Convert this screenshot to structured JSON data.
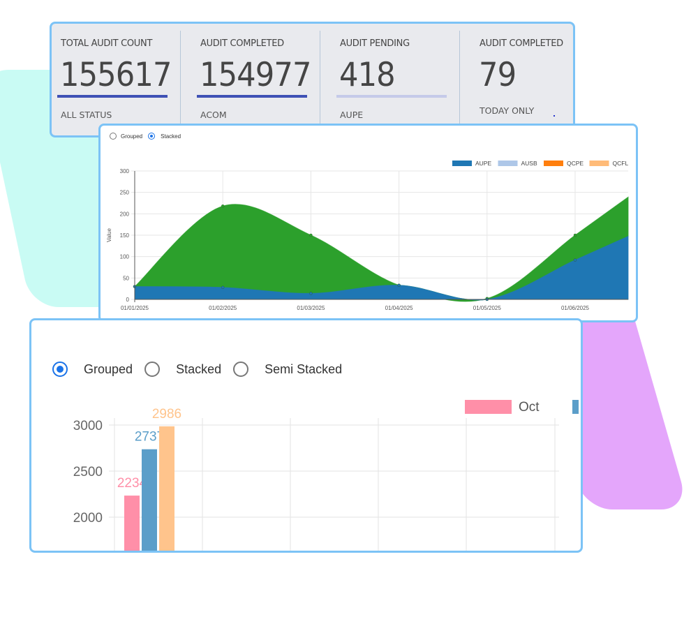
{
  "kpis": [
    {
      "title": "TOTAL AUDIT COUNT",
      "value": "155617",
      "subtitle": "ALL STATUS",
      "bar_color": "#3f51b5"
    },
    {
      "title": "AUDIT COMPLETED",
      "value": "154977",
      "subtitle": "ACOM",
      "bar_color": "#3f51b5"
    },
    {
      "title": "AUDIT PENDING",
      "value": "418",
      "subtitle": "AUPE",
      "bar_color": "#c5cae9"
    },
    {
      "title": "AUDIT COMPLETED",
      "value": "79",
      "subtitle": "TODAY ONLY",
      "bar_color": ""
    }
  ],
  "area_chart": {
    "mode_options": [
      {
        "label": "Grouped",
        "selected": false
      },
      {
        "label": "Stacked",
        "selected": true
      }
    ],
    "chart_data": {
      "type": "area",
      "stacked": true,
      "ylabel": "Value",
      "ylim": [
        0,
        300
      ],
      "yticks": [
        0,
        50,
        100,
        150,
        200,
        250,
        300
      ],
      "categories": [
        "01/01/2025",
        "01/02/2025",
        "01/03/2025",
        "01/04/2025",
        "01/05/2025",
        "01/06/2025"
      ],
      "legend_position": "top-right",
      "legend": [
        {
          "name": "AUPE",
          "color": "#1f77b4"
        },
        {
          "name": "AUSB",
          "color": "#aec7e8"
        },
        {
          "name": "QCPE",
          "color": "#ff7f0e"
        },
        {
          "name": "QCFL",
          "color": "#ffbb78"
        }
      ],
      "series": [
        {
          "name": "AUPE",
          "color": "#1f77b4",
          "values": [
            30,
            28,
            14,
            33,
            0,
            92
          ]
        },
        {
          "color": "#2ca02c",
          "values": [
            0,
            190,
            136,
            0,
            2,
            58
          ]
        }
      ],
      "grid": true
    }
  },
  "bar_chart": {
    "mode_options": [
      {
        "label": "Grouped",
        "selected": true
      },
      {
        "label": "Stacked",
        "selected": false
      },
      {
        "label": "Semi Stacked",
        "selected": false
      }
    ],
    "chart_data": {
      "type": "bar",
      "yticks": [
        2000,
        2500,
        3000
      ],
      "legend_position": "top-right",
      "legend": [
        {
          "name": "Oct",
          "color": "#ff8fa8"
        },
        {
          "name": "",
          "color": "#5b9ec9"
        }
      ],
      "series": [
        {
          "color": "#ff8fa8",
          "values": [
            2234
          ]
        },
        {
          "color": "#5b9ec9",
          "values": [
            2737
          ]
        },
        {
          "color": "#ffc48c",
          "values": [
            2986
          ]
        }
      ],
      "grid": true
    }
  }
}
